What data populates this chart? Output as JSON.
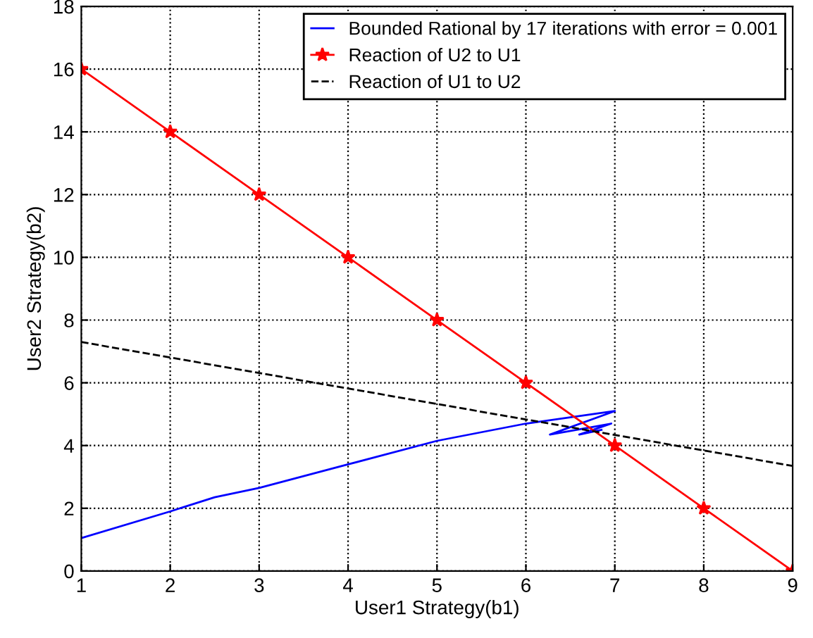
{
  "chart_data": {
    "type": "line",
    "xlabel": "User1 Strategy(b1)",
    "ylabel": "User2 Strategy(b2)",
    "xlim": [
      1,
      9
    ],
    "ylim": [
      0,
      18
    ],
    "xticks": [
      1,
      2,
      3,
      4,
      5,
      6,
      7,
      8,
      9
    ],
    "yticks": [
      0,
      2,
      4,
      6,
      8,
      10,
      12,
      14,
      16,
      18
    ],
    "grid": true,
    "legend": "top right",
    "series": [
      {
        "name": "Bounded Rational by 17 iterations with error = 0.001",
        "color": "#0000ff",
        "marker": "none",
        "line_style": "solid",
        "x": [
          1,
          2,
          2.5,
          3,
          4,
          5,
          6,
          7,
          6.27,
          6.96,
          6.6,
          6.85
        ],
        "values": [
          1.05,
          1.9,
          2.35,
          2.65,
          3.4,
          4.15,
          4.7,
          5.1,
          4.35,
          4.7,
          4.35,
          4.5
        ]
      },
      {
        "name": "Reaction of U2 to U1",
        "color": "#ff0000",
        "marker": "star",
        "line_style": "solid",
        "x": [
          1,
          2,
          3,
          4,
          5,
          6,
          7,
          8,
          9
        ],
        "values": [
          16,
          14,
          12,
          10,
          8,
          6,
          4,
          2,
          0
        ]
      },
      {
        "name": "Reaction of U1 to U2",
        "color": "#000000",
        "marker": "none",
        "line_style": "dashed",
        "x": [
          1,
          9
        ],
        "values": [
          7.3,
          3.35
        ]
      }
    ]
  }
}
